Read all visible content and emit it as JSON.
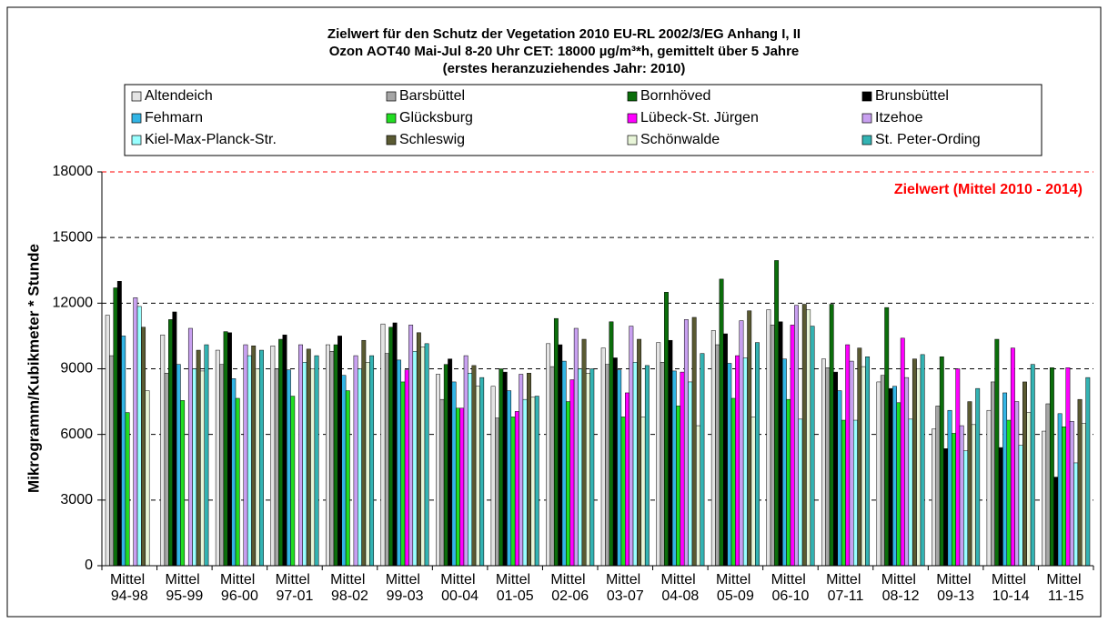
{
  "chart_data": {
    "type": "bar",
    "title": [
      "Zielwert für den Schutz der Vegetation 2010 EU-RL 2002/3/EG Anhang I, II",
      "Ozon AOT40 Mai-Jul 8-20 Uhr CET: 18000 µg/m³*h, gemittelt über 5 Jahre",
      "(erstes  heranzuziehendes Jahr: 2010)"
    ],
    "ylabel": "Mikrogramm/Kubikmeter * Stunde",
    "categories": [
      "Mittel 94-98",
      "Mittel 95-99",
      "Mittel 96-00",
      "Mittel 97-01",
      "Mittel 98-02",
      "Mittel 99-03",
      "Mittel 00-04",
      "Mittel 01-05",
      "Mittel 02-06",
      "Mittel 03-07",
      "Mittel 04-08",
      "Mittel 05-09",
      "Mittel 06-10",
      "Mittel 07-11",
      "Mittel 08-12",
      "Mittel 09-13",
      "Mittel 10-14",
      "Mittel 11-15"
    ],
    "series": [
      {
        "name": "Altendeich",
        "color": "#e4e4e4",
        "values": [
          11450,
          10550,
          9850,
          10050,
          10100,
          11050,
          8750,
          8200,
          10150,
          9950,
          10200,
          10750,
          11700,
          9450,
          8400,
          6250,
          7100,
          6150
        ]
      },
      {
        "name": "Barsbüttel",
        "color": "#a6a6a6",
        "values": [
          9600,
          8800,
          9200,
          9000,
          9800,
          9700,
          7600,
          6750,
          9100,
          9200,
          9300,
          10100,
          11000,
          9050,
          8700,
          7300,
          8400,
          7400
        ]
      },
      {
        "name": "Bornhöved",
        "color": "#0b6e0b",
        "values": [
          12700,
          11250,
          10700,
          10350,
          10100,
          10900,
          9200,
          9000,
          11300,
          11150,
          12500,
          13100,
          13950,
          11950,
          11800,
          9550,
          10350,
          9050
        ]
      },
      {
        "name": "Brunsbüttel",
        "color": "#000000",
        "values": [
          13000,
          11600,
          10650,
          10550,
          10500,
          11100,
          9450,
          8850,
          10100,
          9500,
          10300,
          10600,
          11150,
          8850,
          8100,
          5350,
          5400,
          4050
        ]
      },
      {
        "name": "Fehmarn",
        "color": "#33b5e5",
        "values": [
          10500,
          9200,
          8550,
          8950,
          8700,
          9400,
          8400,
          8000,
          9350,
          8950,
          8900,
          9250,
          9450,
          8000,
          8200,
          7100,
          7900,
          6950
        ]
      },
      {
        "name": "Glücksburg",
        "color": "#22dd22",
        "values": [
          7000,
          7550,
          7650,
          7750,
          8000,
          8400,
          7200,
          6800,
          7500,
          6800,
          7300,
          7650,
          7600,
          6650,
          7450,
          6050,
          6650,
          6350
        ]
      },
      {
        "name": "Lübeck-St. Jürgen",
        "color": "#ff00ff",
        "values": [
          null,
          null,
          null,
          null,
          null,
          8950,
          7200,
          7050,
          8500,
          7900,
          8850,
          9600,
          11000,
          10100,
          10400,
          9000,
          9950,
          9050
        ]
      },
      {
        "name": "Itzehoe",
        "color": "#c8a0f0",
        "values": [
          12250,
          10850,
          10100,
          10100,
          9600,
          11000,
          9600,
          8750,
          10850,
          10950,
          11250,
          11200,
          11900,
          9350,
          8600,
          6400,
          7500,
          6600
        ]
      },
      {
        "name": "Kiel-Max-Planck-Str.",
        "color": "#99ffff",
        "values": [
          11850,
          9000,
          9600,
          9300,
          9000,
          9800,
          8800,
          7600,
          9000,
          9300,
          8400,
          9500,
          6700,
          6650,
          6700,
          5250,
          5500,
          4700
        ]
      },
      {
        "name": "Schleswig",
        "color": "#5a5a32",
        "values": [
          10900,
          9850,
          10050,
          9900,
          10300,
          10650,
          9150,
          8800,
          10350,
          10350,
          11350,
          11650,
          11950,
          9950,
          9450,
          7500,
          8400,
          7600
        ]
      },
      {
        "name": "Schönwalde",
        "color": "#e8f5d8",
        "values": [
          8000,
          8900,
          9000,
          9000,
          9300,
          10000,
          8200,
          7700,
          8800,
          6800,
          6400,
          6800,
          11700,
          9100,
          9000,
          6450,
          7000,
          6500
        ]
      },
      {
        "name": "St. Peter-Ording",
        "color": "#33b3b3",
        "values": [
          null,
          10100,
          9850,
          9600,
          9600,
          10150,
          8600,
          7750,
          9000,
          9150,
          9700,
          10200,
          10950,
          9550,
          9650,
          8100,
          9200,
          8600
        ]
      }
    ],
    "ylim": [
      0,
      18000
    ],
    "yticks": [
      0,
      3000,
      6000,
      9000,
      12000,
      15000,
      18000
    ],
    "grid": true,
    "target": {
      "value": 18000,
      "label": "Zielwert (Mittel 2010 - 2014)",
      "color": "#ff0000"
    }
  }
}
